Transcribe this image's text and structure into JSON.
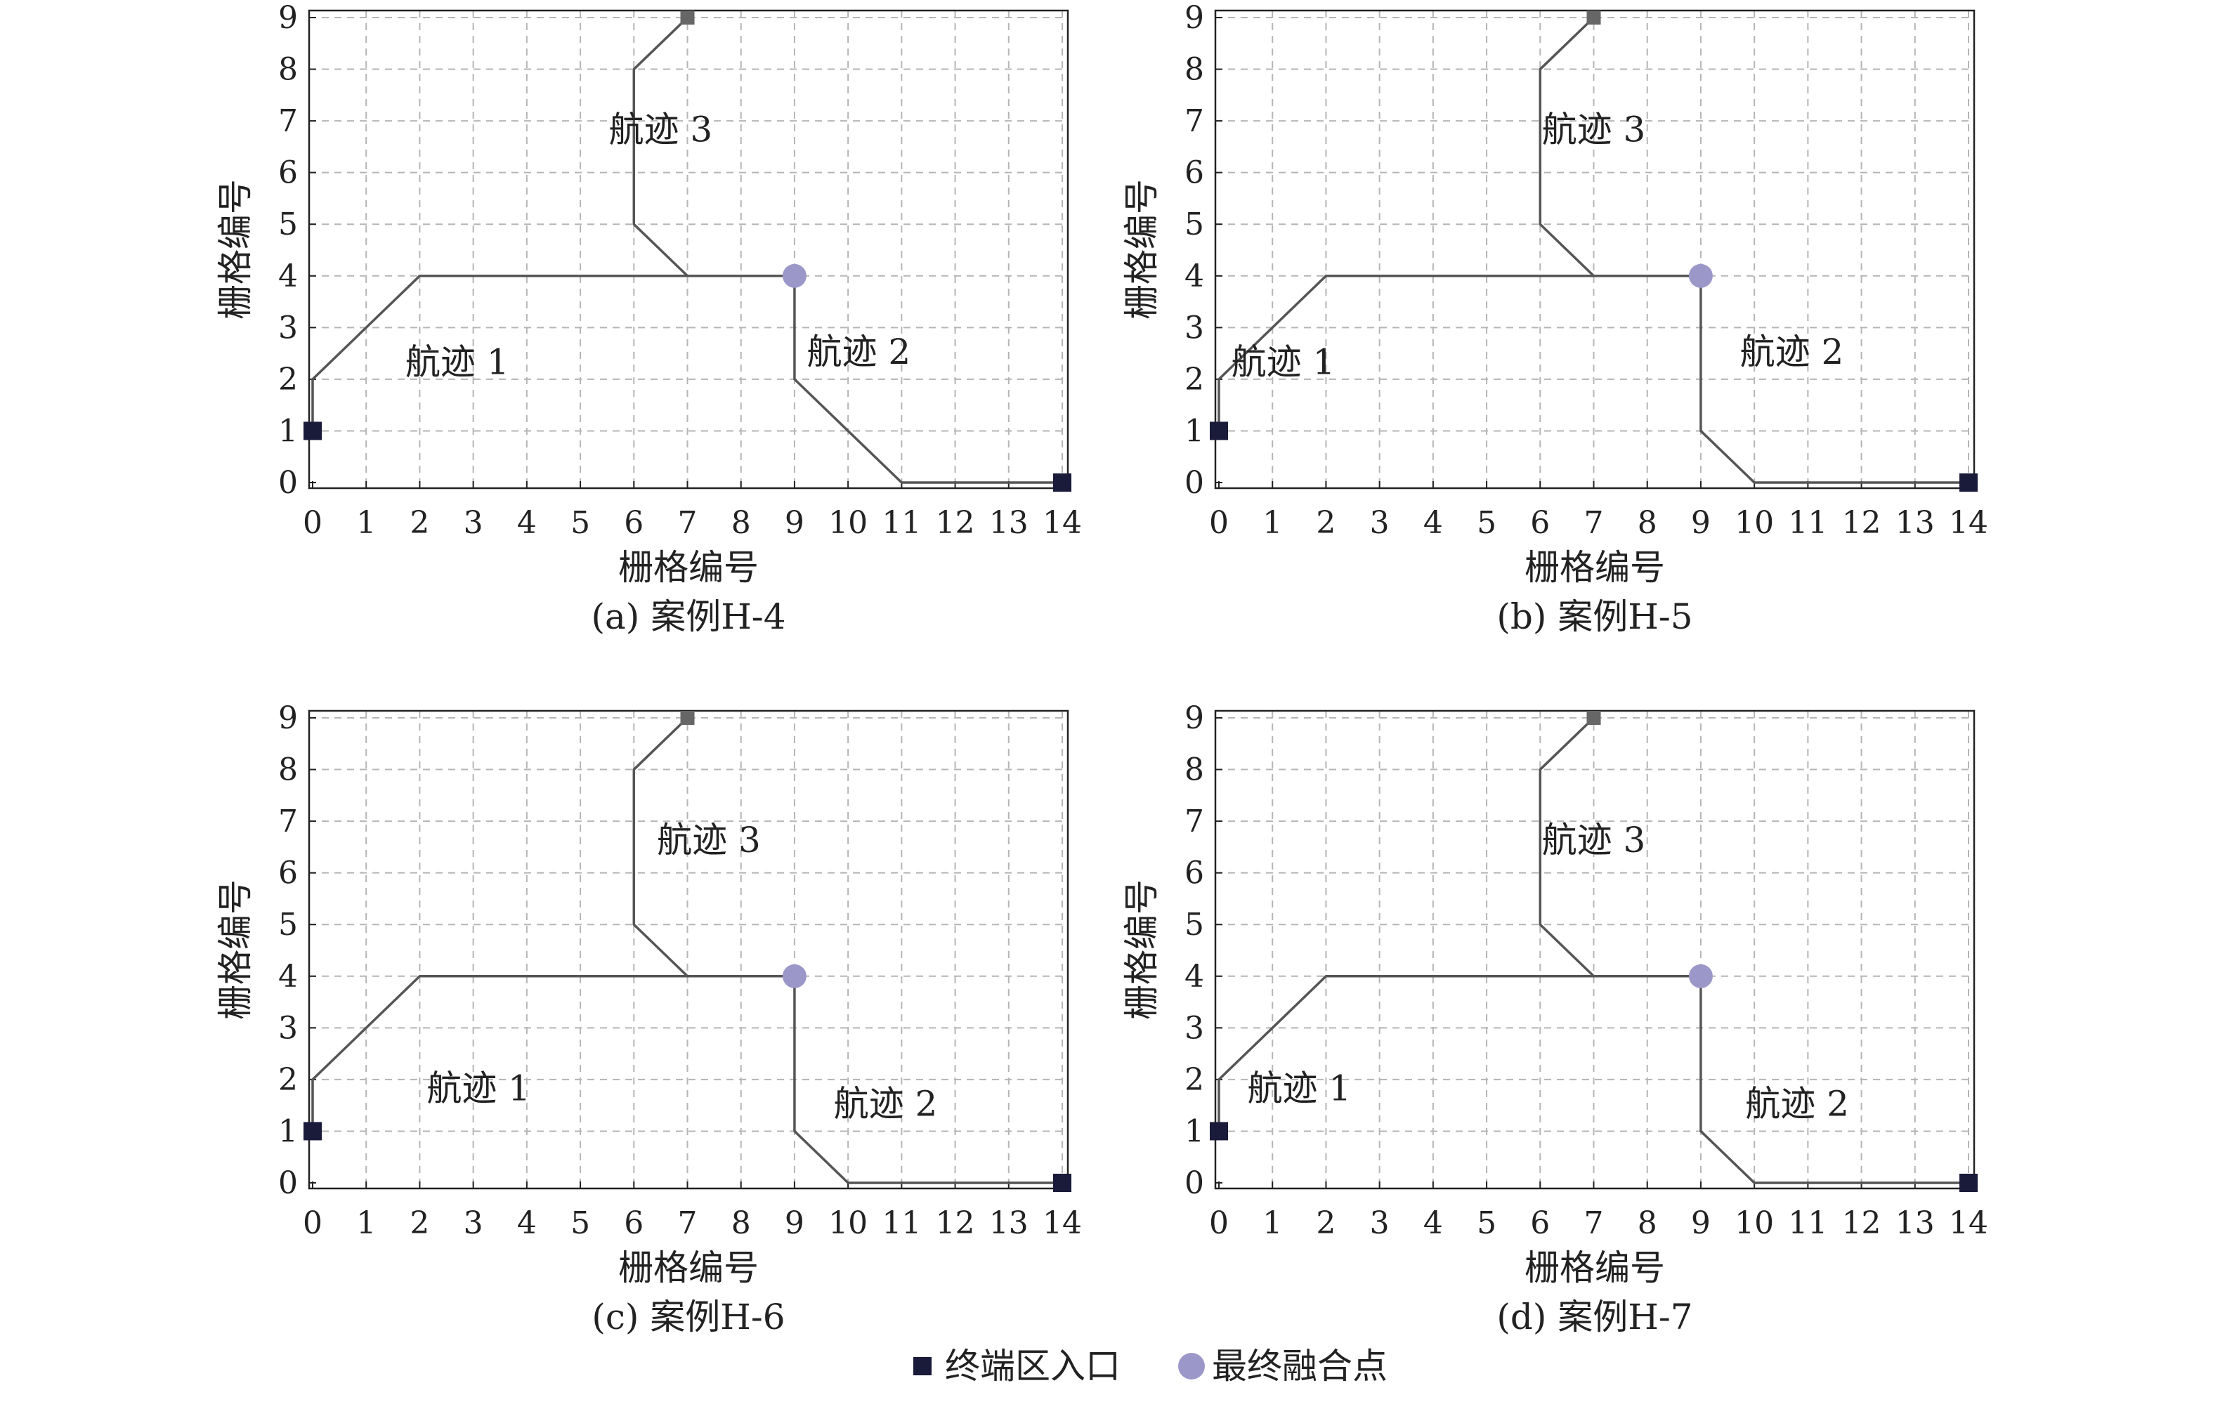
{
  "figure": {
    "legend": [
      {
        "label": "终端区入口",
        "marker": "square",
        "color": "#1a1a3a"
      },
      {
        "label": "最终融合点",
        "marker": "circle",
        "color": "#9b97c9"
      }
    ],
    "colors": {
      "grid": "#b5b5b5",
      "track": "#555555",
      "frame": "#222222",
      "merge_point": "#9b97c9",
      "entry": "#1a1a3a"
    }
  },
  "chart_data": [
    {
      "type": "line",
      "caption": "(a) 案例H-4",
      "xlabel": "栅格编号",
      "ylabel": "栅格编号",
      "xlim": [
        0,
        14
      ],
      "ylim": [
        0,
        9
      ],
      "xticks": [
        "0",
        "1",
        "2",
        "3",
        "4",
        "5",
        "6",
        "7",
        "8",
        "9",
        "10",
        "11",
        "12",
        "13",
        "14"
      ],
      "yticks": [
        "0",
        "1",
        "2",
        "3",
        "4",
        "5",
        "6",
        "7",
        "8",
        "9"
      ],
      "grid": true,
      "series": [
        {
          "name": "航迹 1",
          "label_at": [
            2.7,
            2.1
          ],
          "points": [
            [
              0,
              1
            ],
            [
              0,
              2
            ],
            [
              2,
              4
            ],
            [
              9,
              4
            ]
          ]
        },
        {
          "name": "航迹 2",
          "label_at": [
            10.2,
            2.3
          ],
          "points": [
            [
              14,
              0
            ],
            [
              11,
              0
            ],
            [
              9,
              2
            ],
            [
              9,
              4
            ]
          ]
        },
        {
          "name": "航迹 3",
          "label_at": [
            6.5,
            6.6
          ],
          "points": [
            [
              7,
              9
            ],
            [
              6,
              8
            ],
            [
              6,
              5
            ],
            [
              7,
              4
            ]
          ]
        }
      ],
      "entries": [
        [
          0,
          1
        ],
        [
          14,
          0
        ],
        [
          7,
          9
        ]
      ],
      "merge_point": [
        9,
        4
      ]
    },
    {
      "type": "line",
      "caption": "(b) 案例H-5",
      "xlabel": "栅格编号",
      "ylabel": "栅格编号",
      "xlim": [
        0,
        14
      ],
      "ylim": [
        0,
        9
      ],
      "xticks": [
        "0",
        "1",
        "2",
        "3",
        "4",
        "5",
        "6",
        "7",
        "8",
        "9",
        "10",
        "11",
        "12",
        "13",
        "14"
      ],
      "yticks": [
        "0",
        "1",
        "2",
        "3",
        "4",
        "5",
        "6",
        "7",
        "8",
        "9"
      ],
      "grid": true,
      "series": [
        {
          "name": "航迹 1",
          "label_at": [
            1.2,
            2.1
          ],
          "points": [
            [
              0,
              1
            ],
            [
              0,
              2
            ],
            [
              2,
              4
            ],
            [
              9,
              4
            ]
          ]
        },
        {
          "name": "航迹 2",
          "label_at": [
            10.7,
            2.3
          ],
          "points": [
            [
              14,
              0
            ],
            [
              10,
              0
            ],
            [
              9,
              1
            ],
            [
              9,
              4
            ]
          ]
        },
        {
          "name": "航迹 3",
          "label_at": [
            7.0,
            6.6
          ],
          "points": [
            [
              7,
              9
            ],
            [
              6,
              8
            ],
            [
              6,
              5
            ],
            [
              7,
              4
            ]
          ]
        }
      ],
      "entries": [
        [
          0,
          1
        ],
        [
          14,
          0
        ],
        [
          7,
          9
        ]
      ],
      "merge_point": [
        9,
        4
      ]
    },
    {
      "type": "line",
      "caption": "(c) 案例H-6",
      "xlabel": "栅格编号",
      "ylabel": "栅格编号",
      "xlim": [
        0,
        14
      ],
      "ylim": [
        0,
        9
      ],
      "xticks": [
        "0",
        "1",
        "2",
        "3",
        "4",
        "5",
        "6",
        "7",
        "8",
        "9",
        "10",
        "11",
        "12",
        "13",
        "14"
      ],
      "yticks": [
        "0",
        "1",
        "2",
        "3",
        "4",
        "5",
        "6",
        "7",
        "8",
        "9"
      ],
      "grid": true,
      "series": [
        {
          "name": "航迹 1",
          "label_at": [
            3.1,
            1.6
          ],
          "points": [
            [
              0,
              1
            ],
            [
              0,
              2
            ],
            [
              2,
              4
            ],
            [
              9,
              4
            ]
          ]
        },
        {
          "name": "航迹 2",
          "label_at": [
            10.7,
            1.3
          ],
          "points": [
            [
              14,
              0
            ],
            [
              10,
              0
            ],
            [
              9,
              1
            ],
            [
              9,
              4
            ]
          ]
        },
        {
          "name": "航迹 3",
          "label_at": [
            7.4,
            6.4
          ],
          "points": [
            [
              7,
              9
            ],
            [
              6,
              8
            ],
            [
              6,
              5
            ],
            [
              7,
              4
            ]
          ]
        }
      ],
      "entries": [
        [
          0,
          1
        ],
        [
          14,
          0
        ],
        [
          7,
          9
        ]
      ],
      "merge_point": [
        9,
        4
      ]
    },
    {
      "type": "line",
      "caption": "(d) 案例H-7",
      "xlabel": "栅格编号",
      "ylabel": "栅格编号",
      "xlim": [
        0,
        14
      ],
      "ylim": [
        0,
        9
      ],
      "xticks": [
        "0",
        "1",
        "2",
        "3",
        "4",
        "5",
        "6",
        "7",
        "8",
        "9",
        "10",
        "11",
        "12",
        "13",
        "14"
      ],
      "yticks": [
        "0",
        "1",
        "2",
        "3",
        "4",
        "5",
        "6",
        "7",
        "8",
        "9"
      ],
      "grid": true,
      "series": [
        {
          "name": "航迹 1",
          "label_at": [
            1.5,
            1.6
          ],
          "points": [
            [
              0,
              1
            ],
            [
              0,
              2
            ],
            [
              2,
              4
            ],
            [
              9,
              4
            ]
          ]
        },
        {
          "name": "航迹 2",
          "label_at": [
            10.8,
            1.3
          ],
          "points": [
            [
              14,
              0
            ],
            [
              10,
              0
            ],
            [
              9,
              1
            ],
            [
              9,
              4
            ]
          ]
        },
        {
          "name": "航迹 3",
          "label_at": [
            7.0,
            6.4
          ],
          "points": [
            [
              7,
              9
            ],
            [
              6,
              8
            ],
            [
              6,
              5
            ],
            [
              7,
              4
            ]
          ]
        }
      ],
      "entries": [
        [
          0,
          1
        ],
        [
          14,
          0
        ],
        [
          7,
          9
        ]
      ],
      "merge_point": [
        9,
        4
      ]
    }
  ]
}
